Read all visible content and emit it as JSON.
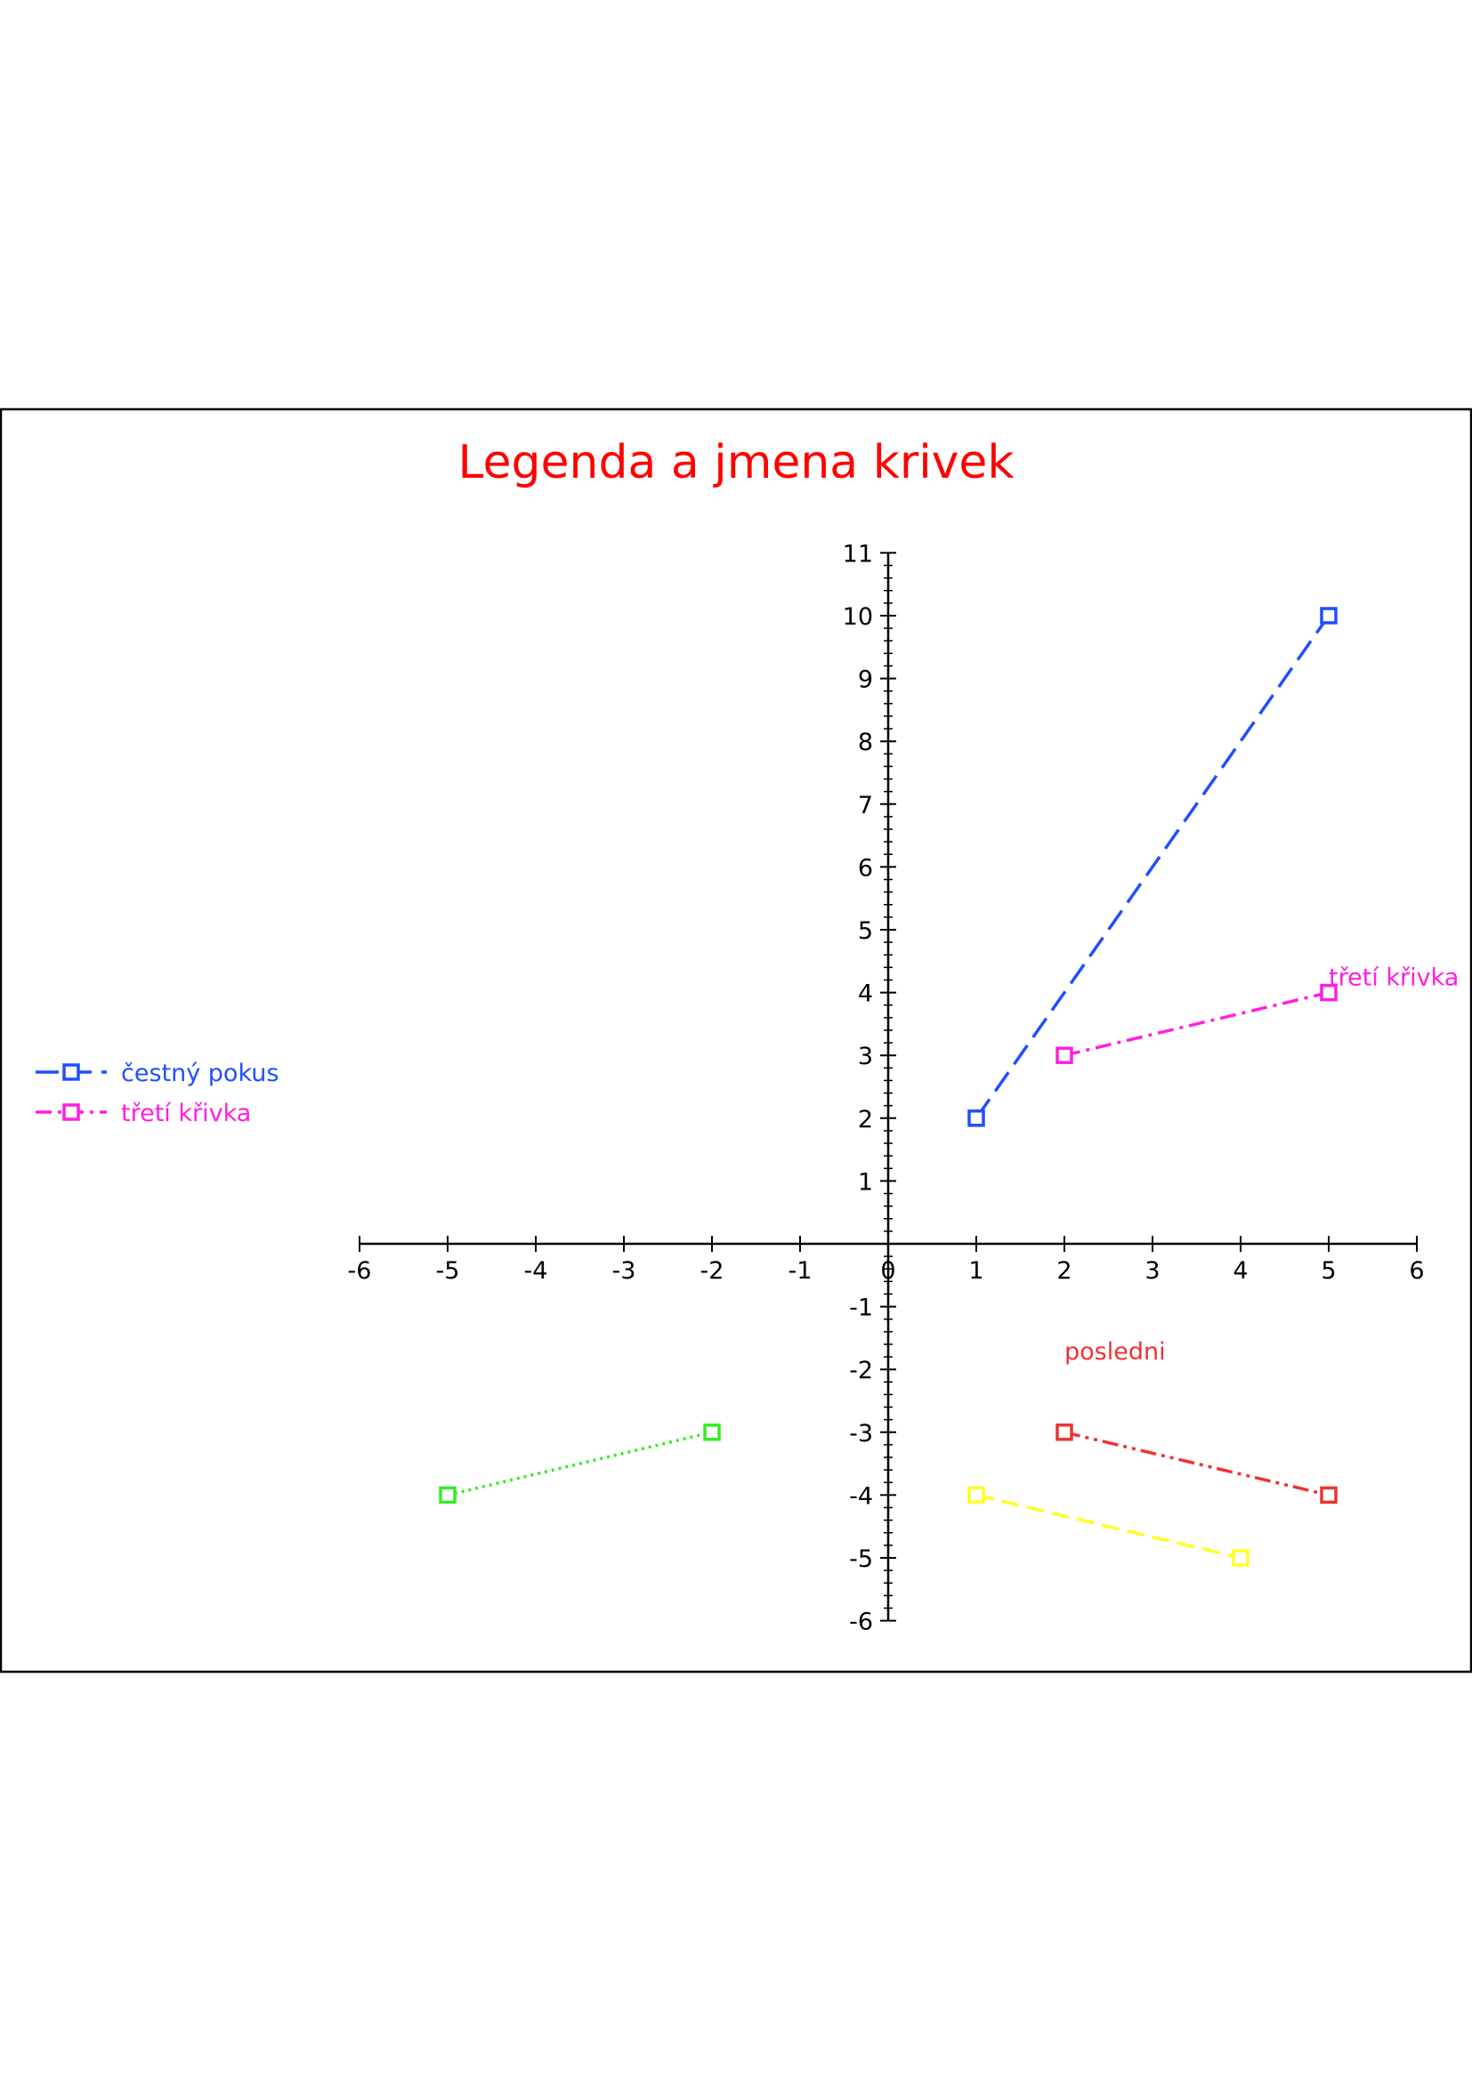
{
  "chart_data": {
    "type": "line",
    "title": "Legenda a jmena krivek",
    "xlim": [
      -6,
      6
    ],
    "ylim": [
      -6,
      11
    ],
    "x_ticks": [
      -6,
      -5,
      -4,
      -3,
      -2,
      -1,
      0,
      1,
      2,
      3,
      4,
      5,
      6
    ],
    "y_ticks": [
      -6,
      -5,
      -4,
      -3,
      -2,
      -1,
      1,
      2,
      3,
      4,
      5,
      6,
      7,
      8,
      9,
      10,
      11
    ],
    "grid": false,
    "legend_position": "left",
    "marker": "square",
    "series": [
      {
        "name": "čestný pokus",
        "in_legend": true,
        "color": "#1f4fff",
        "dash": "long-dash",
        "points": [
          [
            1,
            2
          ],
          [
            5,
            10
          ]
        ]
      },
      {
        "name": "třetí křivka",
        "in_legend": true,
        "color": "#ff1fe0",
        "dash": "dash-dot",
        "points": [
          [
            2,
            3
          ],
          [
            5,
            4
          ]
        ],
        "end_label": "třetí křivka"
      },
      {
        "color": "#33ee22",
        "dash": "dotted",
        "points": [
          [
            -5,
            -4
          ],
          [
            -2,
            -3
          ]
        ]
      },
      {
        "color": "#ffff22",
        "dash": "dash",
        "points": [
          [
            1,
            -4
          ],
          [
            4,
            -5
          ]
        ]
      },
      {
        "color": "#ee3333",
        "dash": "dash-dot-dot",
        "points": [
          [
            2,
            -3
          ],
          [
            5,
            -4
          ]
        ]
      }
    ],
    "annotations": [
      {
        "text": "posledni",
        "x": 2,
        "y": -1.7,
        "color": "#ee3333"
      }
    ],
    "title_color": "#ff0000"
  }
}
